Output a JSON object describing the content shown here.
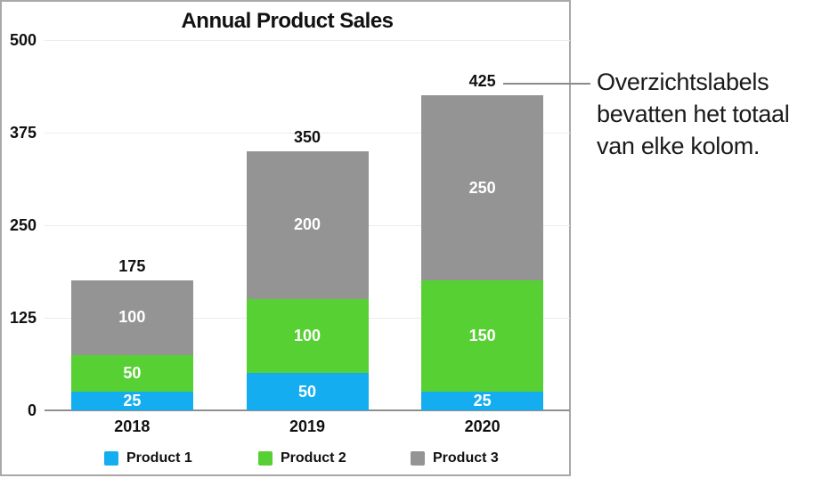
{
  "figure": {
    "callout": {
      "lines": [
        "Overzichtslabels",
        "bevatten het totaal",
        "van elke kolom."
      ]
    }
  },
  "chart_data": {
    "type": "bar",
    "stacked": true,
    "title": "Annual Product Sales",
    "categories": [
      "2018",
      "2019",
      "2020"
    ],
    "series": [
      {
        "name": "Product 1",
        "color": "#14AEF0",
        "values": [
          25,
          50,
          25
        ]
      },
      {
        "name": "Product 2",
        "color": "#57D034",
        "values": [
          50,
          100,
          150
        ]
      },
      {
        "name": "Product 3",
        "color": "#949494",
        "values": [
          100,
          200,
          250
        ]
      }
    ],
    "totals": [
      175,
      350,
      425
    ],
    "y_ticks": [
      0,
      125,
      250,
      375,
      500
    ],
    "ylim": [
      0,
      500
    ],
    "grid": true,
    "legend_position": "bottom",
    "colors": {
      "grid_line": "#ECECEC",
      "axis_line": "#8F8F8F",
      "panel_border": "#A9A9A9",
      "leader_line": "#8A8A8A",
      "segment_label": "#FFFFFF",
      "text": "#111111"
    }
  }
}
